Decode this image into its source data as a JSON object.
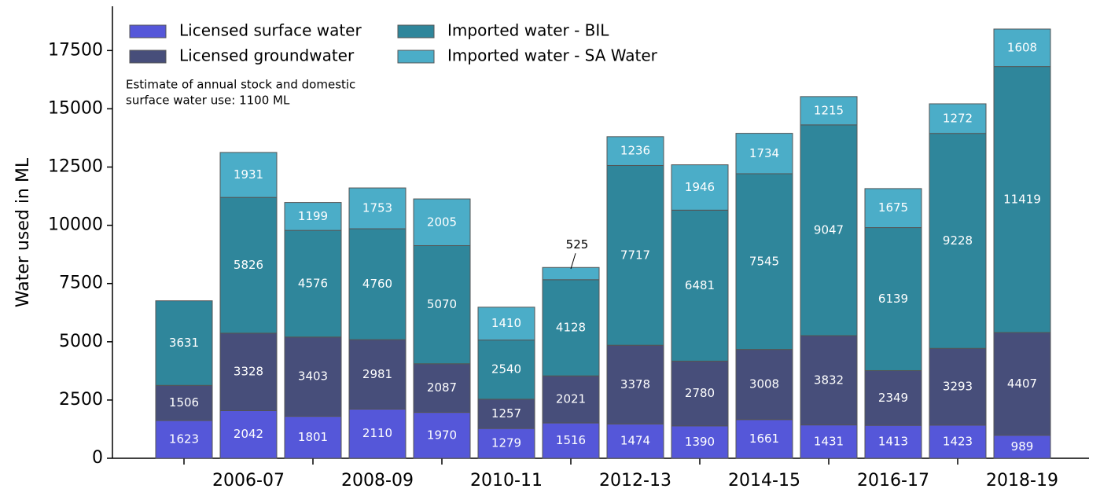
{
  "chart_data": {
    "type": "stacked-bar",
    "y_label": "Water used in ML",
    "annotation": [
      "Estimate of annual stock and domestic",
      "surface water use: 1100 ML"
    ],
    "categories": [
      null,
      "2006-07",
      null,
      "2008-09",
      null,
      "2010-11",
      null,
      "2012-13",
      null,
      "2014-15",
      null,
      "2016-17",
      null,
      "2018-19"
    ],
    "series": [
      {
        "name": "Licensed surface water",
        "color": "#5557d9",
        "values": [
          1623,
          2042,
          1801,
          2110,
          1970,
          1279,
          1516,
          1474,
          1390,
          1661,
          1431,
          1413,
          1423,
          989
        ]
      },
      {
        "name": "Licensed groundwater",
        "color": "#474e7a",
        "values": [
          1506,
          3328,
          3403,
          2981,
          2087,
          1257,
          2021,
          3378,
          2780,
          3008,
          3832,
          2349,
          3293,
          4407
        ]
      },
      {
        "name": "Imported water - BIL",
        "color": "#2f869b",
        "values": [
          3631,
          5826,
          4576,
          4760,
          5070,
          2540,
          4128,
          7717,
          6481,
          7545,
          9047,
          6139,
          9228,
          11419
        ]
      },
      {
        "name": "Imported water - SA Water",
        "color": "#4badc8",
        "values": [
          null,
          1931,
          1199,
          1753,
          2005,
          1410,
          525,
          1236,
          1946,
          1734,
          1215,
          1675,
          1272,
          1608
        ]
      }
    ],
    "ylim": [
      0,
      19400
    ],
    "yticks": [
      0,
      2500,
      5000,
      7500,
      10000,
      12500,
      15000,
      17500
    ]
  }
}
